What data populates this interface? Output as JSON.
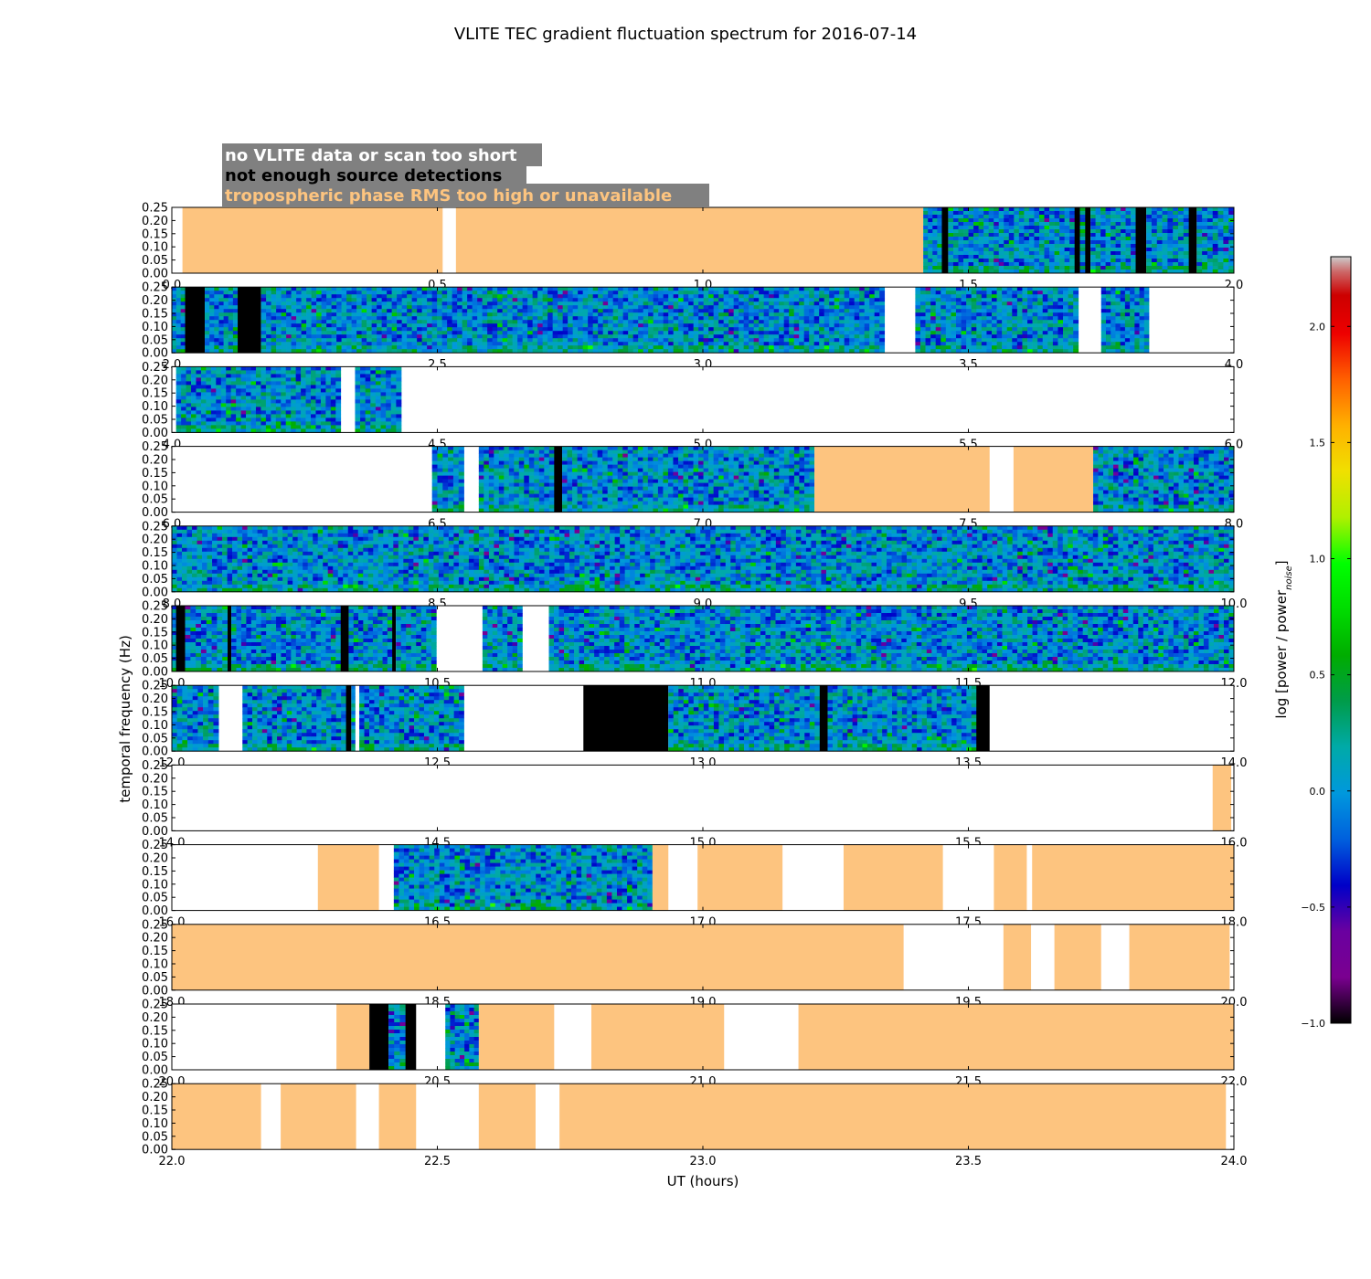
{
  "chart_data": {
    "type": "heatmap",
    "title": "VLITE TEC gradient fluctuation spectrum for 2016-07-14",
    "xlabel": "UT (hours)",
    "ylabel": "temporal frequency (Hz)",
    "colorbar_label": "log [power / power_noise]",
    "colorbar_range": [
      -1.0,
      2.3
    ],
    "colorbar_ticks": [
      "−1.0",
      "−0.5",
      "0.0",
      "0.5",
      "1.0",
      "1.5",
      "2.0"
    ],
    "colorbar_tick_values": [
      -1.0,
      -0.5,
      0.0,
      0.5,
      1.0,
      1.5,
      2.0
    ],
    "colormap": "nipy_spectral",
    "y_ticks": [
      "0.00",
      "0.05",
      "0.10",
      "0.15",
      "0.20",
      "0.25"
    ],
    "ylim": [
      0,
      0.25
    ],
    "legend": [
      {
        "label": "no VLITE data or scan too short",
        "color": "#ffffff"
      },
      {
        "label": "not enough source detections",
        "color": "#000000"
      },
      {
        "label": "tropospheric phase RMS too high or unavailable",
        "color": "#fdc47f"
      }
    ],
    "colors": {
      "no_data": "#ffffff",
      "few_detections": "#000000",
      "tropo": "#fdc47f",
      "legend_box": "#808080"
    },
    "panels": [
      {
        "xlim": [
          0,
          2
        ],
        "xticks": [
          "0.0",
          "0.5",
          "1.0",
          "1.5",
          "2.0"
        ],
        "segments": [
          [
            "t",
            0.02,
            0.51
          ],
          [
            "t",
            0.535,
            1.415
          ],
          [
            "d",
            1.415,
            1.45
          ],
          [
            "b",
            1.45,
            1.462
          ],
          [
            "d",
            1.462,
            1.7
          ],
          [
            "b",
            1.7,
            1.71
          ],
          [
            "d",
            1.71,
            1.72
          ],
          [
            "b",
            1.72,
            1.73
          ],
          [
            "d",
            1.73,
            1.815
          ],
          [
            "b",
            1.815,
            1.835
          ],
          [
            "d",
            1.835,
            1.915
          ],
          [
            "b",
            1.915,
            1.93
          ],
          [
            "d",
            1.93,
            2.0
          ]
        ]
      },
      {
        "xlim": [
          2,
          4
        ],
        "xticks": [
          "2.0",
          "2.5",
          "3.0",
          "3.5",
          "4.0"
        ],
        "segments": [
          [
            "d",
            2.0,
            2.025
          ],
          [
            "b",
            2.025,
            2.062
          ],
          [
            "d",
            2.062,
            2.124
          ],
          [
            "b",
            2.124,
            2.168
          ],
          [
            "d",
            2.168,
            3.342
          ],
          [
            "d",
            3.4,
            3.707
          ],
          [
            "d",
            3.75,
            3.84
          ]
        ]
      },
      {
        "xlim": [
          4,
          6
        ],
        "xticks": [
          "4.0",
          "4.5",
          "5.0",
          "5.5",
          "6.0"
        ],
        "segments": [
          [
            "d",
            4.008,
            4.318
          ],
          [
            "d",
            4.345,
            4.432
          ]
        ]
      },
      {
        "xlim": [
          6,
          8
        ],
        "xticks": [
          "6.0",
          "6.5",
          "7.0",
          "7.5",
          "8.0"
        ],
        "segments": [
          [
            "d",
            6.49,
            6.55
          ],
          [
            "d",
            6.578,
            6.72
          ],
          [
            "b",
            6.72,
            6.735
          ],
          [
            "d",
            6.735,
            7.21
          ],
          [
            "t",
            7.21,
            7.54
          ],
          [
            "t",
            7.585,
            7.735
          ],
          [
            "d",
            7.735,
            8.0
          ]
        ]
      },
      {
        "xlim": [
          8,
          10
        ],
        "xticks": [
          "8.0",
          "8.5",
          "9.0",
          "9.5",
          "10.0"
        ],
        "segments": [
          [
            "d",
            8.0,
            10.0
          ]
        ]
      },
      {
        "xlim": [
          10,
          12
        ],
        "xticks": [
          "10.0",
          "10.5",
          "11.0",
          "11.5",
          "12.0"
        ],
        "segments": [
          [
            "d",
            10.0,
            10.008
          ],
          [
            "b",
            10.008,
            10.025
          ],
          [
            "d",
            10.025,
            10.105
          ],
          [
            "b",
            10.105,
            10.112
          ],
          [
            "d",
            10.112,
            10.318
          ],
          [
            "b",
            10.318,
            10.333
          ],
          [
            "d",
            10.333,
            10.415
          ],
          [
            "b",
            10.415,
            10.422
          ],
          [
            "d",
            10.422,
            10.498
          ],
          [
            "d",
            10.585,
            10.66
          ],
          [
            "d",
            10.71,
            12.0
          ]
        ]
      },
      {
        "xlim": [
          12,
          14
        ],
        "xticks": [
          "12.0",
          "12.5",
          "13.0",
          "13.5",
          "14.0"
        ],
        "segments": [
          [
            "d",
            12.0,
            12.088
          ],
          [
            "d",
            12.133,
            12.328
          ],
          [
            "b",
            12.328,
            12.338
          ],
          [
            "d",
            12.338,
            12.345
          ],
          [
            "d",
            12.353,
            12.55
          ],
          [
            "b",
            12.775,
            12.935
          ],
          [
            "d",
            12.935,
            13.22
          ],
          [
            "b",
            13.22,
            13.235
          ],
          [
            "d",
            13.235,
            13.515
          ],
          [
            "b",
            13.515,
            13.54
          ]
        ]
      },
      {
        "xlim": [
          14,
          16
        ],
        "xticks": [
          "14.0",
          "14.5",
          "15.0",
          "15.5",
          "16.0"
        ],
        "segments": [
          [
            "t",
            15.96,
            15.995
          ]
        ]
      },
      {
        "xlim": [
          16,
          18
        ],
        "xticks": [
          "16.0",
          "16.5",
          "17.0",
          "17.5",
          "18.0"
        ],
        "segments": [
          [
            "t",
            16.275,
            16.39
          ],
          [
            "d",
            16.418,
            16.905
          ],
          [
            "t",
            16.905,
            16.935
          ],
          [
            "t",
            16.99,
            17.15
          ],
          [
            "t",
            17.265,
            17.452
          ],
          [
            "t",
            17.548,
            17.61
          ],
          [
            "t",
            17.62,
            18.0
          ]
        ]
      },
      {
        "xlim": [
          18,
          20
        ],
        "xticks": [
          "18.0",
          "18.5",
          "19.0",
          "19.5",
          "20.0"
        ],
        "segments": [
          [
            "t",
            18.0,
            19.378
          ],
          [
            "t",
            19.566,
            19.618
          ],
          [
            "t",
            19.662,
            19.75
          ],
          [
            "t",
            19.803,
            19.992
          ]
        ]
      },
      {
        "xlim": [
          20,
          22
        ],
        "xticks": [
          "20.0",
          "20.5",
          "21.0",
          "21.5",
          "22.0"
        ],
        "segments": [
          [
            "t",
            20.31,
            20.372
          ],
          [
            "b",
            20.372,
            20.408
          ],
          [
            "d",
            20.408,
            20.44
          ],
          [
            "b",
            20.44,
            20.46
          ],
          [
            "d",
            20.515,
            20.578
          ],
          [
            "t",
            20.578,
            20.72
          ],
          [
            "t",
            20.79,
            21.04
          ],
          [
            "t",
            21.18,
            22.0
          ]
        ]
      },
      {
        "xlim": [
          22,
          24
        ],
        "xticks": [
          "22.0",
          "22.5",
          "23.0",
          "23.5",
          "24.0"
        ],
        "segments": [
          [
            "t",
            22.0,
            22.168
          ],
          [
            "t",
            22.205,
            22.347
          ],
          [
            "t",
            22.39,
            22.46
          ],
          [
            "t",
            22.578,
            22.685
          ],
          [
            "t",
            22.73,
            23.985
          ]
        ]
      }
    ]
  }
}
